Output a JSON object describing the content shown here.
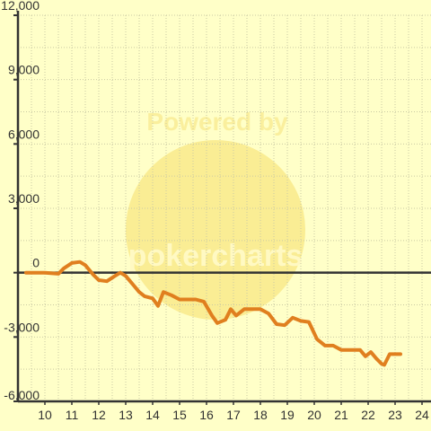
{
  "watermark": {
    "top_text": "Powered by",
    "logo_text": "pokercharts"
  },
  "colors": {
    "background": "#ffffc8",
    "grid": "#c9c9a3",
    "axis": "#333333",
    "line": "#e07f1f",
    "watermark": "#f7e27a"
  },
  "chart_data": {
    "type": "line",
    "title": "",
    "xlabel": "",
    "ylabel": "",
    "xlim": [
      9.3,
      24.3
    ],
    "ylim": [
      -6000,
      12000
    ],
    "x_ticks": [
      10,
      11,
      12,
      13,
      14,
      15,
      16,
      17,
      18,
      19,
      20,
      21,
      22,
      23,
      24
    ],
    "x_tick_labels": [
      "10",
      "11",
      "12",
      "13",
      "14",
      "15",
      "16",
      "17",
      "18",
      "19",
      "20",
      "21",
      "22",
      "23",
      "24"
    ],
    "y_ticks": [
      -6000,
      -3000,
      0,
      3000,
      6000,
      9000,
      12000
    ],
    "y_tick_labels": [
      "-6,000",
      "-3,000",
      "0",
      "3,000",
      "6,000",
      "9,000",
      "12,000"
    ],
    "grid": true,
    "series": [
      {
        "x": [
          9.3,
          10.0,
          10.5,
          10.7,
          11.0,
          11.3,
          11.5,
          11.8,
          12.0,
          12.3,
          12.6,
          12.8,
          13.0,
          13.3,
          13.5,
          13.7,
          14.0,
          14.2,
          14.4,
          14.7,
          15.0,
          15.3,
          15.6,
          15.9,
          16.2,
          16.4,
          16.7,
          16.9,
          17.1,
          17.4,
          17.7,
          18.0,
          18.3,
          18.6,
          18.9,
          19.2,
          19.5,
          19.8,
          20.1,
          20.4,
          20.7,
          21.0,
          21.3,
          21.7,
          21.9,
          22.1,
          22.3,
          22.5,
          22.6,
          22.8,
          23.0,
          23.2
        ],
        "y": [
          0,
          0,
          -50,
          200,
          450,
          500,
          350,
          -100,
          -350,
          -400,
          -150,
          0,
          -150,
          -600,
          -900,
          -1100,
          -1200,
          -1550,
          -900,
          -1050,
          -1250,
          -1250,
          -1250,
          -1350,
          -2000,
          -2350,
          -2200,
          -1700,
          -2000,
          -1700,
          -1700,
          -1700,
          -1900,
          -2400,
          -2450,
          -2100,
          -2250,
          -2300,
          -3100,
          -3400,
          -3400,
          -3600,
          -3600,
          -3600,
          -3900,
          -3700,
          -4000,
          -4250,
          -4300,
          -3800,
          -3800,
          -3800
        ]
      }
    ]
  }
}
